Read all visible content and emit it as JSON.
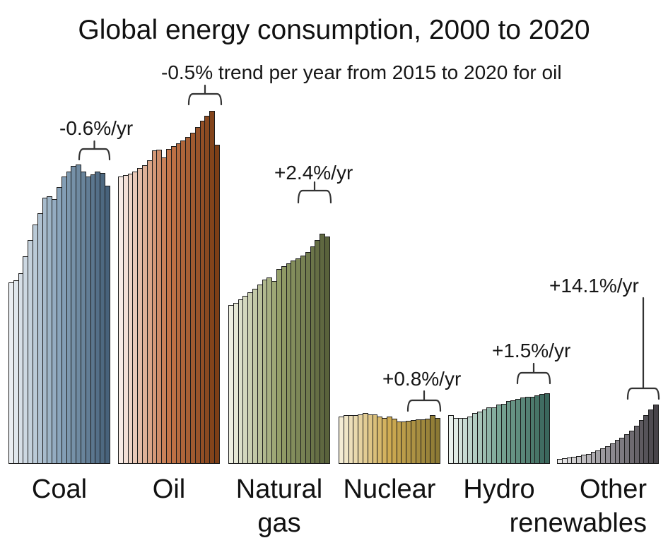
{
  "chart_data": {
    "type": "bar",
    "title": "Global energy consumption, 2000 to 2020",
    "years": {
      "first": 2000,
      "last": 2020,
      "bars_per_group": 21
    },
    "value_units": "relative bar height in pixels (figure shows no y-axis, gridlines or tick labels)",
    "ylim": [
      0,
      500
    ],
    "grid": false,
    "legend": false,
    "series": [
      {
        "id": "coal",
        "label_lines": [
          "Coal"
        ],
        "trend_label": "-0.6%/yr",
        "colors": {
          "start": "#eaeef2",
          "mid": "#8aa5bb",
          "end": "#47627b"
        },
        "values": [
          257,
          260,
          270,
          294,
          317,
          339,
          355,
          377,
          379,
          375,
          392,
          407,
          414,
          422,
          424,
          414,
          407,
          410,
          414,
          412,
          394
        ]
      },
      {
        "id": "oil",
        "label_lines": [
          "Oil"
        ],
        "trend_label": "-0.5% trend per year from 2015 to 2020 for oil",
        "colors": {
          "start": "#f8ebe5",
          "mid": "#c4764a",
          "end": "#7c3e16"
        },
        "values": [
          407,
          409,
          411,
          414,
          419,
          423,
          430,
          444,
          445,
          434,
          446,
          450,
          454,
          458,
          463,
          469,
          477,
          486,
          493,
          500,
          452
        ]
      },
      {
        "id": "natural-gas",
        "label_lines": [
          "Natural",
          "gas"
        ],
        "trend_label": "+2.4%/yr",
        "colors": {
          "start": "#eeefe1",
          "mid": "#95a06a",
          "end": "#59623b"
        },
        "values": [
          225,
          228,
          233,
          238,
          243,
          248,
          254,
          261,
          264,
          259,
          276,
          280,
          284,
          288,
          291,
          295,
          300,
          308,
          317,
          326,
          322
        ]
      },
      {
        "id": "nuclear",
        "label_lines": [
          "Nuclear"
        ],
        "trend_label": "+0.8%/yr",
        "colors": {
          "start": "#f4ecd4",
          "mid": "#cfab52",
          "end": "#8b7934"
        },
        "values": [
          67,
          69,
          69,
          69,
          70,
          72,
          70,
          70,
          67,
          65,
          67,
          64,
          60,
          60,
          61,
          62,
          63,
          63,
          64,
          69,
          65
        ]
      },
      {
        "id": "hydro",
        "label_lines": [
          "Hydro"
        ],
        "trend_label": "+1.5%/yr",
        "colors": {
          "start": "#eaf1ed",
          "mid": "#7aa695",
          "end": "#3a675c"
        },
        "values": [
          69,
          65,
          65,
          65,
          67,
          72,
          74,
          77,
          80,
          80,
          84,
          85,
          89,
          90,
          92,
          94,
          95,
          95,
          97,
          99,
          100
        ]
      },
      {
        "id": "other-renewables",
        "label_lines": [
          "Other",
          "renewables"
        ],
        "trend_label": "+14.1%/yr",
        "colors": {
          "start": "#e9e9e9",
          "mid": "#949197",
          "end": "#474349"
        },
        "values": [
          7,
          8,
          9,
          10,
          11,
          13,
          14,
          17,
          19,
          22,
          25,
          29,
          34,
          37,
          42,
          47,
          54,
          62,
          69,
          77,
          84
        ]
      }
    ]
  }
}
